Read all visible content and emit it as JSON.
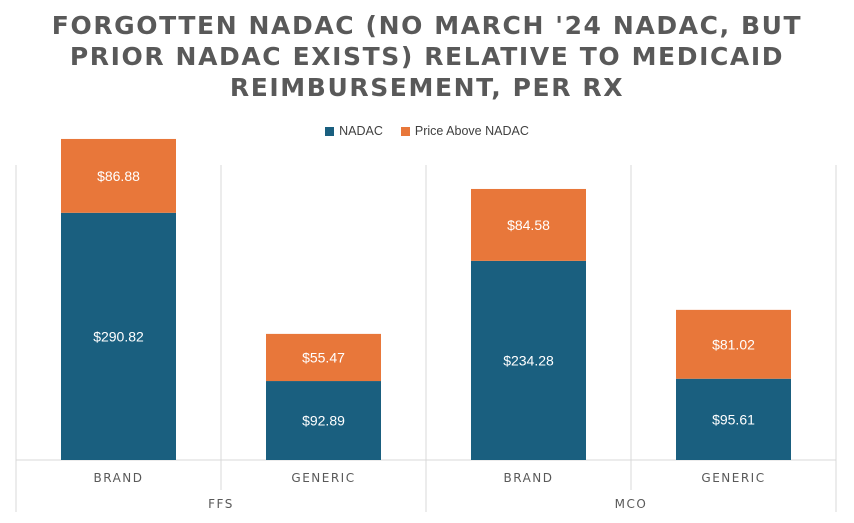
{
  "chart_data": {
    "type": "bar",
    "stacked": true,
    "title_lines": [
      "FORGOTTEN NADAC (NO MARCH '24 NADAC, BUT",
      "PRIOR NADAC EXISTS) RELATIVE TO MEDICAID",
      "REIMBURSEMENT, PER RX"
    ],
    "groups": [
      "FFS",
      "MCO"
    ],
    "categories": [
      "BRAND",
      "GENERIC",
      "BRAND",
      "GENERIC"
    ],
    "category_group": [
      "FFS",
      "FFS",
      "MCO",
      "MCO"
    ],
    "series": [
      {
        "name": "NADAC",
        "color": "#1a5f7f",
        "values": [
          290.82,
          92.89,
          234.28,
          95.61
        ],
        "labels": [
          "$290.82",
          "$92.89",
          "$234.28",
          "$95.61"
        ]
      },
      {
        "name": "Price Above NADAC",
        "color": "#e8773a",
        "values": [
          86.88,
          55.47,
          84.58,
          81.02
        ],
        "labels": [
          "$86.88",
          "$55.47",
          "$84.58",
          "$81.02"
        ]
      }
    ],
    "ylim": [
      0,
      400
    ],
    "grid": false,
    "legend": "top-center",
    "xlabel": "",
    "ylabel": ""
  }
}
